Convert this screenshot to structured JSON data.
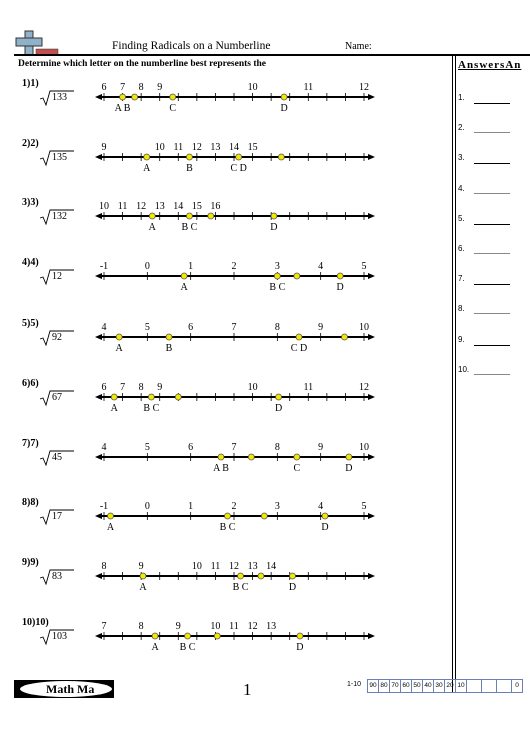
{
  "header": {
    "title": "Finding Radicals on a Numberline",
    "name_label": "Name:"
  },
  "instructions": "Determine which letter on the numberline best represents the",
  "answers": {
    "title": "AnswersAn",
    "numbers": [
      "1.",
      "2.",
      "3.",
      "4.",
      "5.",
      "6.",
      "7.",
      "8.",
      "9.",
      "10."
    ]
  },
  "problems": [
    {
      "label": "1)1)",
      "radicand": "133",
      "tick_labels": [
        "6",
        "7",
        "8",
        "9",
        "",
        "",
        "",
        "",
        "10",
        "",
        "",
        "11",
        "",
        "",
        "12"
      ],
      "points": [
        {
          "pos": 1.0,
          "letter": "A B"
        },
        {
          "pos": 1.65,
          "letter": ""
        },
        {
          "pos": 3.7,
          "letter": "C"
        },
        {
          "pos": 9.7,
          "letter": "D"
        }
      ]
    },
    {
      "label": "2)2)",
      "radicand": "135",
      "tick_labels": [
        "9",
        "",
        "",
        "10",
        "11",
        "12",
        "13",
        "14",
        "15",
        "",
        "",
        "",
        "",
        "",
        ""
      ],
      "points": [
        {
          "pos": 2.3,
          "letter": "A"
        },
        {
          "pos": 4.6,
          "letter": "B"
        },
        {
          "pos": 7.25,
          "letter": "C D"
        },
        {
          "pos": 9.55,
          "letter": ""
        }
      ]
    },
    {
      "label": "3)3)",
      "radicand": "132",
      "tick_labels": [
        "10",
        "11",
        "12",
        "13",
        "14",
        "15",
        "16",
        "",
        "",
        "",
        "",
        "",
        "",
        "",
        ""
      ],
      "points": [
        {
          "pos": 2.6,
          "letter": "A"
        },
        {
          "pos": 4.6,
          "letter": "B C"
        },
        {
          "pos": 5.75,
          "letter": ""
        },
        {
          "pos": 9.15,
          "letter": "D"
        }
      ]
    },
    {
      "label": "4)4)",
      "radicand": "12",
      "tick_labels": [
        "-1",
        "0",
        "1",
        "2",
        "3",
        "4",
        "5"
      ],
      "points": [
        {
          "pos": 1.85,
          "letter": "A"
        },
        {
          "pos": 4.0,
          "letter": "B C"
        },
        {
          "pos": 4.45,
          "letter": ""
        },
        {
          "pos": 5.45,
          "letter": "D"
        }
      ]
    },
    {
      "label": "5)5)",
      "radicand": "92",
      "tick_labels": [
        "4",
        "5",
        "6",
        "7",
        "8",
        "9",
        "10"
      ],
      "points": [
        {
          "pos": 0.35,
          "letter": "A"
        },
        {
          "pos": 1.5,
          "letter": "B"
        },
        {
          "pos": 4.5,
          "letter": "C D"
        },
        {
          "pos": 5.55,
          "letter": ""
        }
      ]
    },
    {
      "label": "6)6)",
      "radicand": "67",
      "tick_labels": [
        "6",
        "7",
        "8",
        "9",
        "",
        "",
        "",
        "",
        "10",
        "",
        "",
        "11",
        "",
        "",
        "12"
      ],
      "points": [
        {
          "pos": 0.55,
          "letter": "A"
        },
        {
          "pos": 2.55,
          "letter": "B C"
        },
        {
          "pos": 4.0,
          "letter": ""
        },
        {
          "pos": 9.4,
          "letter": "D"
        }
      ]
    },
    {
      "label": "7)7)",
      "radicand": "45",
      "tick_labels": [
        "4",
        "5",
        "6",
        "7",
        "8",
        "9",
        "10"
      ],
      "points": [
        {
          "pos": 2.7,
          "letter": "A B"
        },
        {
          "pos": 3.4,
          "letter": ""
        },
        {
          "pos": 4.45,
          "letter": "C"
        },
        {
          "pos": 5.65,
          "letter": "D"
        }
      ]
    },
    {
      "label": "8)8)",
      "radicand": "17",
      "tick_labels": [
        "-1",
        "0",
        "1",
        "2",
        "3",
        "4",
        "5"
      ],
      "points": [
        {
          "pos": 0.15,
          "letter": "A"
        },
        {
          "pos": 2.85,
          "letter": "B C"
        },
        {
          "pos": 3.7,
          "letter": ""
        },
        {
          "pos": 5.1,
          "letter": "D"
        }
      ]
    },
    {
      "label": "9)9)",
      "radicand": "83",
      "tick_labels": [
        "8",
        "",
        "9",
        "",
        "",
        "10",
        "11",
        "12",
        "13",
        "14",
        "",
        "",
        "",
        "",
        ""
      ],
      "points": [
        {
          "pos": 2.1,
          "letter": "A"
        },
        {
          "pos": 7.35,
          "letter": "B C"
        },
        {
          "pos": 8.45,
          "letter": ""
        },
        {
          "pos": 10.15,
          "letter": "D"
        }
      ]
    },
    {
      "label": "10)10)",
      "radicand": "103",
      "tick_labels": [
        "7",
        "",
        "8",
        "",
        "9",
        "",
        "10",
        "11",
        "12",
        "13",
        "",
        "",
        "",
        "",
        ""
      ],
      "points": [
        {
          "pos": 2.75,
          "letter": "A"
        },
        {
          "pos": 4.5,
          "letter": "B C"
        },
        {
          "pos": 6.1,
          "letter": ""
        },
        {
          "pos": 10.55,
          "letter": "D"
        }
      ]
    }
  ],
  "footer": {
    "logo_text": "Math Ma",
    "page_number": "1",
    "score_range": "1-10",
    "scores": [
      "90",
      "80",
      "70",
      "60",
      "50",
      "40",
      "30",
      "20",
      "10",
      "",
      "",
      "",
      "0"
    ]
  }
}
